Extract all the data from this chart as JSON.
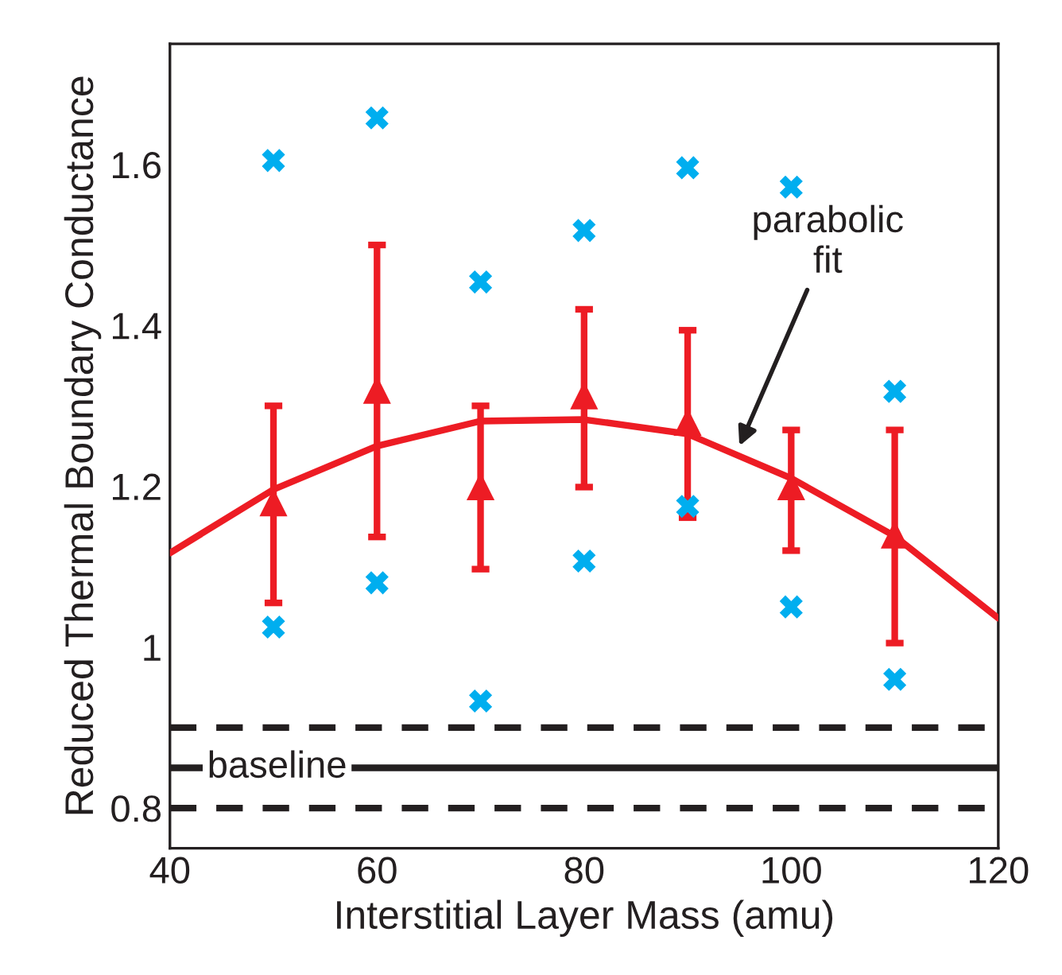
{
  "chart_data": {
    "type": "scatter",
    "xlabel": "Interstitial Layer Mass (amu)",
    "ylabel": "Reduced Thermal Boundary Conductance",
    "xlim": [
      40,
      120
    ],
    "ylim": [
      0.75,
      1.75
    ],
    "xticks": [
      40,
      60,
      80,
      100,
      120
    ],
    "yticks": [
      0.8,
      1,
      1.2,
      1.4,
      1.6
    ],
    "grid": false,
    "legend": false,
    "series": [
      {
        "marker": "cross",
        "color": "#00aeef",
        "x": [
          50,
          60,
          70,
          80,
          90,
          100,
          110
        ],
        "values": [
          1.605,
          1.658,
          1.454,
          1.518,
          1.596,
          1.572,
          1.318
        ]
      },
      {
        "marker": "cross",
        "color": "#00aeef",
        "x": [
          50,
          60,
          70,
          80,
          90,
          100,
          110
        ],
        "values": [
          1.025,
          1.08,
          0.933,
          1.107,
          1.175,
          1.05,
          0.96
        ]
      },
      {
        "type": "line",
        "marker": "none",
        "color": "#ed1c24",
        "x": [
          40,
          50,
          60,
          70,
          80,
          90,
          100,
          110,
          120
        ],
        "values": [
          1.117,
          1.196,
          1.25,
          1.281,
          1.283,
          1.265,
          1.21,
          1.138,
          1.036
        ]
      },
      {
        "marker": "triangle",
        "color": "#ed1c24",
        "x": [
          50,
          60,
          70,
          80,
          90,
          100,
          110
        ],
        "values": [
          1.18,
          1.32,
          1.2,
          1.313,
          1.28,
          1.2,
          1.14
        ],
        "errors": [
          [
            1.055,
            1.3
          ],
          [
            1.137,
            1.5
          ],
          [
            1.097,
            1.3
          ],
          [
            1.199,
            1.42
          ],
          [
            1.161,
            1.394
          ],
          [
            1.12,
            1.27
          ],
          [
            1.005,
            1.27
          ]
        ]
      }
    ],
    "ref_lines": [
      {
        "axis": "y",
        "value": 0.9,
        "line_style": "dashed",
        "color": "#231f20"
      },
      {
        "axis": "y",
        "value": 0.85,
        "label": "baseline",
        "line_style": "solid",
        "color": "#231f20"
      },
      {
        "axis": "y",
        "value": 0.8,
        "line_style": "dashed",
        "color": "#231f20"
      }
    ],
    "annotations": [
      {
        "text": "parabolic\nfit",
        "x": 95,
        "y": 1.25
      }
    ]
  }
}
